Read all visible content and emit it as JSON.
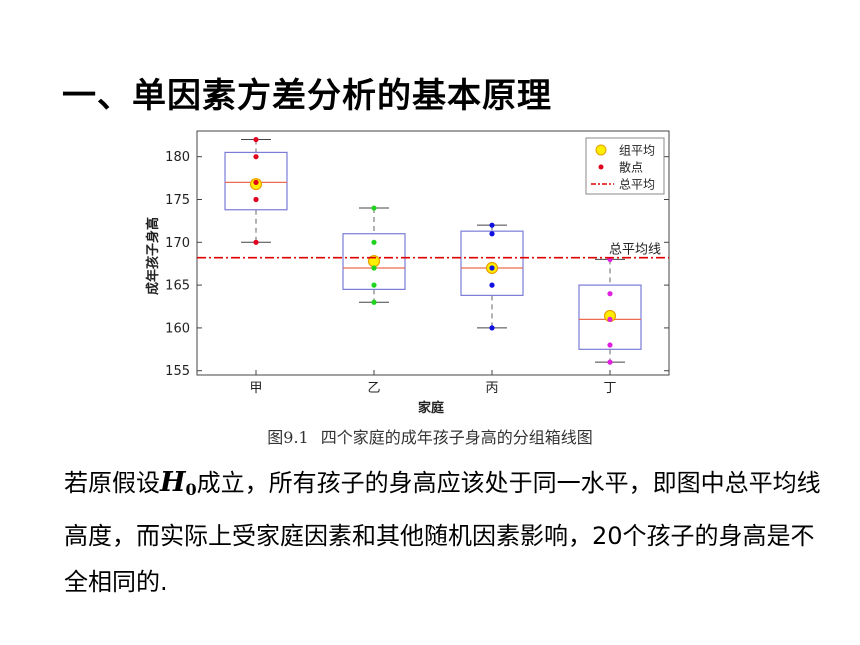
{
  "slide": {
    "title": "一、单因素方差分析的基本原理",
    "caption_num": "图9.1",
    "caption_text": "四个家庭的成年孩子身高的分组箱线图",
    "paragraph": {
      "part1": "若原假设",
      "h0_symbol": "H",
      "h0_sub": "0",
      "part2": "成立，所有孩子的身高应该处于同一水平，即图中总平均线高度，而实际上受家庭因素和其他随机因素影响，20个孩子的身高是不全相同的."
    }
  },
  "chart_data": {
    "type": "box",
    "xlabel": "家庭",
    "ylabel": "成年孩子身高",
    "categories": [
      "甲",
      "乙",
      "丙",
      "丁"
    ],
    "ylim": [
      154.5,
      183
    ],
    "yticks": [
      155,
      160,
      165,
      170,
      175,
      180
    ],
    "grid": false,
    "legend_position": "top-right",
    "legend": [
      {
        "label": "组平均",
        "marker": "yellow-circle"
      },
      {
        "label": "散点",
        "marker": "dot"
      },
      {
        "label": "总平均",
        "marker": "red-dashdot-line"
      }
    ],
    "overall_mean": 168.2,
    "overall_mean_label": "总平均线",
    "groups": [
      {
        "category": "甲",
        "color": "#e0001b",
        "whisker_low": 170,
        "q1": 173.8,
        "median": 177,
        "q3": 180.5,
        "whisker_high": 182,
        "mean": 176.8,
        "points": [
          182,
          180,
          177,
          175,
          170
        ]
      },
      {
        "category": "乙",
        "color": "#1fd31f",
        "whisker_low": 163,
        "q1": 164.5,
        "median": 167,
        "q3": 171,
        "whisker_high": 174,
        "mean": 167.8,
        "points": [
          174,
          170,
          167,
          165,
          163
        ]
      },
      {
        "category": "丙",
        "color": "#1010e0",
        "whisker_low": 160,
        "q1": 163.8,
        "median": 167,
        "q3": 171.3,
        "whisker_high": 172,
        "mean": 167,
        "points": [
          172,
          171,
          167,
          165,
          160
        ]
      },
      {
        "category": "丁",
        "color": "#e020e0",
        "whisker_low": 156,
        "q1": 157.5,
        "median": 161,
        "q3": 165,
        "whisker_high": 168,
        "mean": 161.4,
        "points": [
          168,
          164,
          161,
          158,
          156
        ]
      }
    ],
    "colors": {
      "box": "#7b7bd8",
      "median": "#ee6a50",
      "mean_fill": "#ffee00",
      "mean_stroke": "#e8a000",
      "overall_line": "#e00000",
      "axis": "#444444"
    }
  }
}
